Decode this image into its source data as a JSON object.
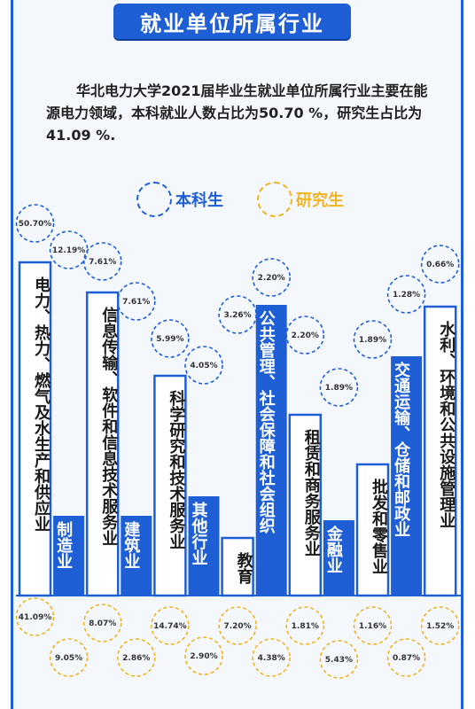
{
  "title": "就业单位所属行业",
  "intro": "华北电力大学2021届毕业生就业单位所属行业主要在能源电力领域，本科就业人数占比为50.70 %，研究生占比为41.09 %.",
  "colors": {
    "blue": "#1e5fd6",
    "gold": "#f0b322",
    "text": "#222222"
  },
  "legend": [
    {
      "name": "本科生",
      "color": "#1e5fd6"
    },
    {
      "name": "研究生",
      "color": "#f0b322"
    }
  ],
  "chart_data": {
    "type": "bar",
    "categories": [
      "电力、热力、燃气及水生产和供应业",
      "制造业",
      "信息传输、软件和信息技术服务业",
      "建筑业",
      "科学研究和技术服务业",
      "其他行业",
      "教育",
      "公共管理、社会保障和社会组织",
      "租赁和商务服务业",
      "金融业",
      "批发和零售业",
      "交通运输、仓储和邮政业",
      "水利、环境和公共设施管理业"
    ],
    "series": [
      {
        "name": "本科生",
        "labels": [
          "50.70%",
          "12.19%",
          "7.61%",
          "7.61%",
          "5.99%",
          "4.05%",
          "3.26%",
          "2.20%",
          "2.20%",
          "1.89%",
          "1.89%",
          "1.28%",
          "0.66%"
        ]
      },
      {
        "name": "研究生",
        "labels": [
          "41.09%",
          "9.05%",
          "8.07%",
          "2.86%",
          "14.74%",
          "2.90%",
          "7.20%",
          "4.38%",
          "1.81%",
          "5.43%",
          "1.16%",
          "0.87%",
          "1.52%"
        ]
      }
    ]
  }
}
